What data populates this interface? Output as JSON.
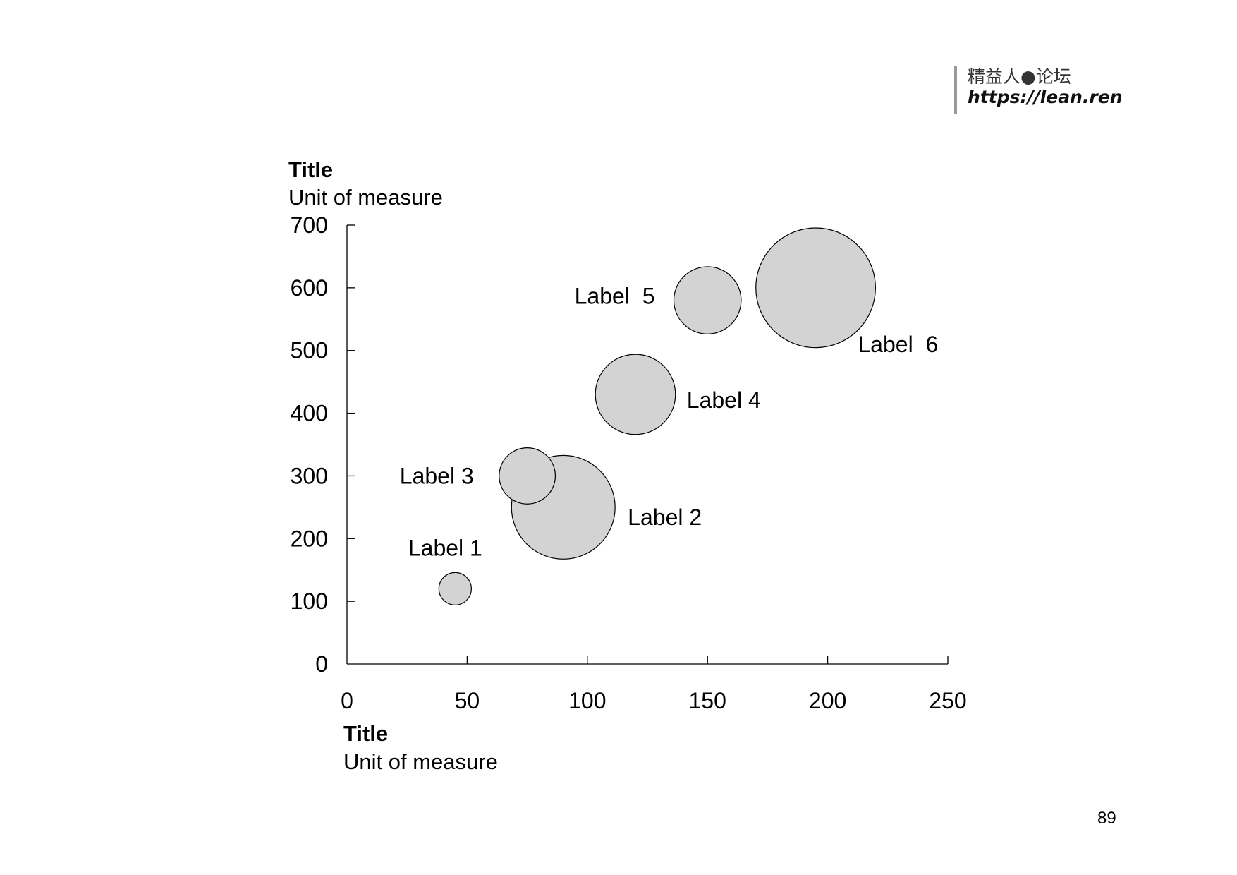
{
  "watermark": {
    "line1": "精益人●论坛",
    "line2": "https://lean.ren"
  },
  "page_number": "89",
  "chart_data": {
    "type": "bubble",
    "y_title": "Title",
    "y_unit": "Unit of measure",
    "x_title": "Title",
    "x_unit": "Unit of measure",
    "xlim": [
      0,
      250
    ],
    "ylim": [
      0,
      700
    ],
    "x_ticks": [
      0,
      50,
      100,
      150,
      200,
      250
    ],
    "y_ticks": [
      0,
      100,
      200,
      300,
      400,
      500,
      600,
      700
    ],
    "grid": false,
    "legend": "none",
    "bubble_fill": "#d3d3d3",
    "bubble_stroke": "#000000",
    "series": [
      {
        "points": [
          {
            "label": "Label 1",
            "x": 45,
            "y": 120,
            "size": 1
          },
          {
            "label": "Label 2",
            "x": 90,
            "y": 250,
            "size": 10.2
          },
          {
            "label": "Label 3",
            "x": 75,
            "y": 300,
            "size": 3
          },
          {
            "label": "Label 4",
            "x": 120,
            "y": 430,
            "size": 6.1
          },
          {
            "label": "Label  5",
            "x": 150,
            "y": 580,
            "size": 4.3
          },
          {
            "label": "Label  6",
            "x": 195,
            "y": 600,
            "size": 13.6
          }
        ]
      }
    ]
  }
}
